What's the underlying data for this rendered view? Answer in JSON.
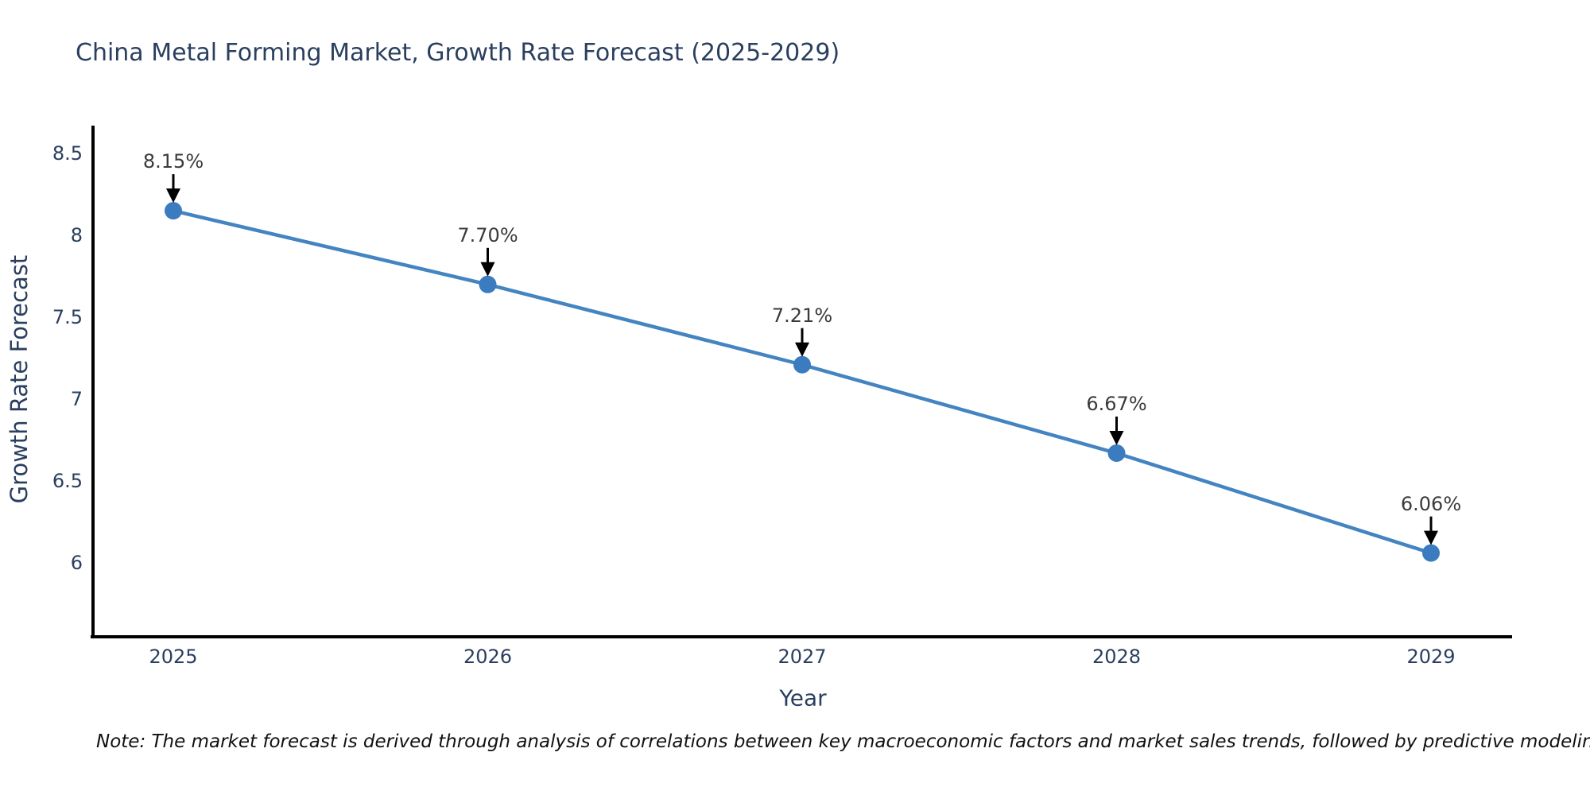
{
  "title": "China Metal Forming Market, Growth Rate Forecast (2025-2029)",
  "note": "Note: The market forecast is derived through analysis of correlations between key macroeconomic factors and market sales trends, followed by predictive modeling to project future sales",
  "chart_data": {
    "type": "line",
    "title": "China Metal Forming Market, Growth Rate Forecast (2025-2029)",
    "xlabel": "Year",
    "ylabel": "Growth Rate Forecast",
    "categories": [
      "2025",
      "2026",
      "2027",
      "2028",
      "2029"
    ],
    "series": [
      {
        "name": "Growth Rate Forecast",
        "values": [
          8.15,
          7.7,
          7.21,
          6.67,
          6.06
        ]
      }
    ],
    "annotations": [
      "8.15%",
      "7.70%",
      "7.21%",
      "6.67%",
      "6.06%"
    ],
    "y_tick_labels": [
      "6",
      "6.5",
      "7",
      "7.5",
      "8",
      "8.5"
    ],
    "y_tick_values": [
      6,
      6.5,
      7,
      7.5,
      8,
      8.5
    ],
    "ylim": [
      5.55,
      8.67
    ],
    "grid": false,
    "legend_position": "none",
    "colors": {
      "line": "#4384c1",
      "marker": "#3a7cbf",
      "arrow": "#000000",
      "axis": "#000000",
      "axis_text": "#2a3f5f",
      "annotation_text": "#3a3a3a",
      "title_text": "#2a3f5f",
      "note_text": "#111111"
    }
  }
}
